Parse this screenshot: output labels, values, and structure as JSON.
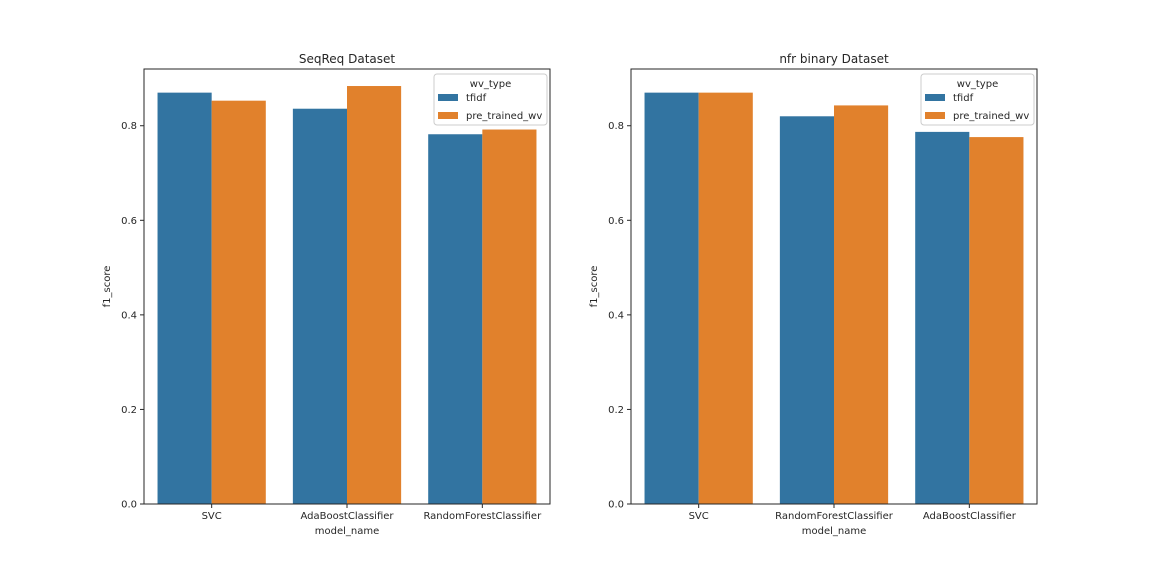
{
  "chart_data": [
    {
      "type": "bar",
      "title": "SeqReq Dataset",
      "xlabel": "model_name",
      "ylabel": "f1_score",
      "categories": [
        "SVC",
        "AdaBoostClassifier",
        "RandomForestClassifier"
      ],
      "series": [
        {
          "name": "tfidf",
          "values": [
            0.87,
            0.836,
            0.782
          ]
        },
        {
          "name": "pre_trained_wv",
          "values": [
            0.853,
            0.884,
            0.792
          ]
        }
      ],
      "ylim": [
        0,
        0.92
      ],
      "yticks": [
        "0.0",
        "0.2",
        "0.4",
        "0.6",
        "0.8"
      ],
      "legend": {
        "title": "wv_type",
        "position": "top-right"
      },
      "grid": false
    },
    {
      "type": "bar",
      "title": "nfr binary Dataset",
      "xlabel": "model_name",
      "ylabel": "f1_score",
      "categories": [
        "SVC",
        "RandomForestClassifier",
        "AdaBoostClassifier"
      ],
      "series": [
        {
          "name": "tfidf",
          "values": [
            0.87,
            0.82,
            0.787
          ]
        },
        {
          "name": "pre_trained_wv",
          "values": [
            0.87,
            0.843,
            0.776
          ]
        }
      ],
      "ylim": [
        0,
        0.92
      ],
      "yticks": [
        "0.0",
        "0.2",
        "0.4",
        "0.6",
        "0.8"
      ],
      "legend": {
        "title": "wv_type",
        "position": "top-right"
      },
      "grid": false
    }
  ],
  "colors": {
    "tfidf": "#3274a1",
    "pre_trained_wv": "#e1812c"
  }
}
